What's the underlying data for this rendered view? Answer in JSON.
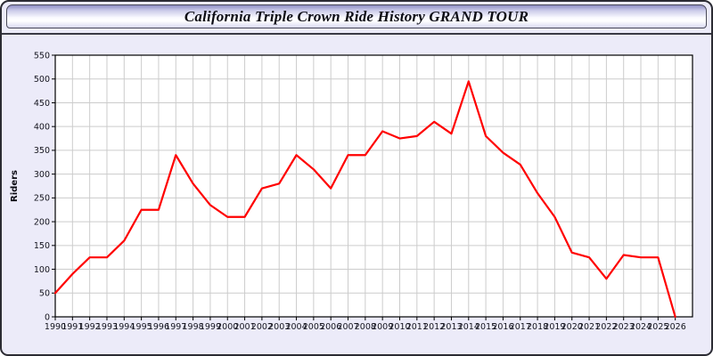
{
  "window": {
    "title": "California Triple Crown Ride History GRAND TOUR"
  },
  "chart_data": {
    "type": "line",
    "title": "California Triple Crown Ride History GRAND TOUR",
    "xlabel": "",
    "ylabel": "Riders",
    "ylim": [
      0,
      550
    ],
    "ytick_step": 50,
    "grid": true,
    "legend_position": "none",
    "x": [
      1990,
      1991,
      1992,
      1993,
      1994,
      1995,
      1996,
      1997,
      1998,
      1999,
      2000,
      2001,
      2002,
      2003,
      2004,
      2005,
      2006,
      2007,
      2008,
      2009,
      2010,
      2011,
      2012,
      2013,
      2014,
      2015,
      2016,
      2017,
      2018,
      2019,
      2020,
      2021,
      2022,
      2023,
      2024,
      2025,
      2026
    ],
    "series": [
      {
        "name": "Riders",
        "color": "#ff0000",
        "values": [
          50,
          90,
          125,
          125,
          160,
          225,
          225,
          340,
          280,
          235,
          210,
          210,
          270,
          280,
          340,
          310,
          270,
          340,
          340,
          390,
          375,
          380,
          410,
          385,
          495,
          380,
          345,
          320,
          260,
          210,
          135,
          125,
          80,
          130,
          125,
          125,
          0
        ]
      }
    ]
  },
  "colors": {
    "page_background": "#ecebf9",
    "plot_background": "#ffffff",
    "grid": "#cccccc",
    "axis": "#000000",
    "line": "#ff0000",
    "window_border": "#2b2b33"
  }
}
